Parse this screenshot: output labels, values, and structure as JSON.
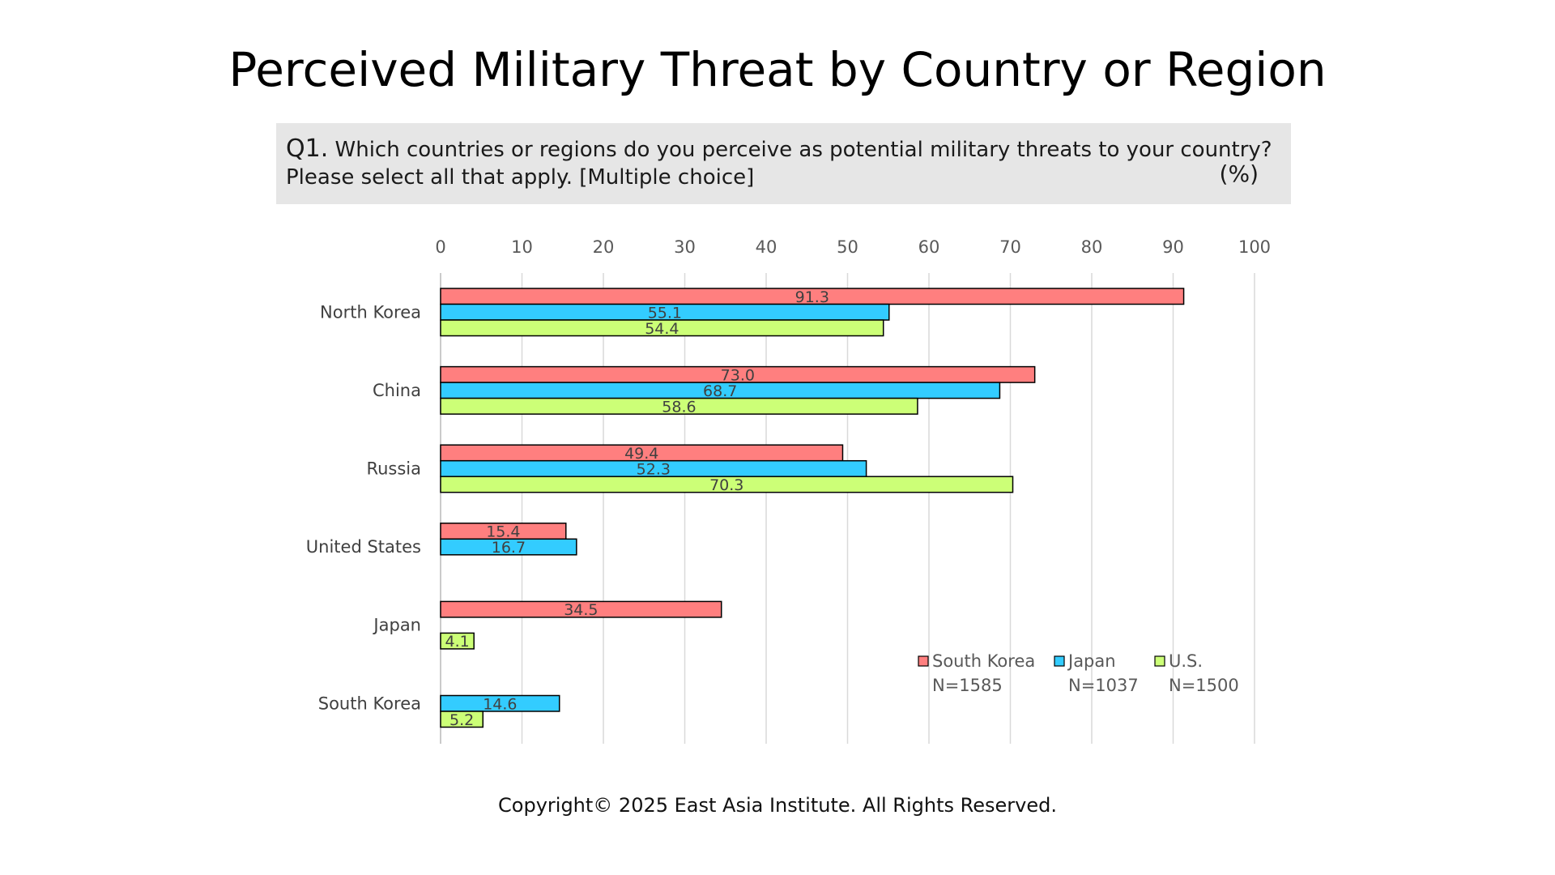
{
  "title": "Perceived Military Threat by Country or Region",
  "question": {
    "number": "Q1.",
    "line1": "Which countries or regions do you perceive as potential military threats to your country?",
    "line2": "Please select all that apply. [Multiple choice]",
    "unit": "(%)"
  },
  "copyright": "Copyright© 2025 East Asia Institute. All Rights Reserved.",
  "chart_data": {
    "type": "bar",
    "orientation": "horizontal",
    "categories": [
      "North Korea",
      "China",
      "Russia",
      "United States",
      "Japan",
      "South Korea"
    ],
    "series": [
      {
        "name": "South Korea",
        "n": "N=1585",
        "color": "#ff7f7f",
        "values": [
          91.3,
          73.0,
          49.4,
          15.4,
          34.5,
          null
        ],
        "labels": [
          "91.3",
          "73.0",
          "49.4",
          "15.4",
          "34.5",
          null
        ]
      },
      {
        "name": "Japan",
        "n": "N=1037",
        "color": "#33ccff",
        "values": [
          55.1,
          68.7,
          52.3,
          16.7,
          null,
          14.6
        ],
        "labels": [
          "55.1",
          "68.7",
          "52.3",
          "16.7",
          null,
          "14.6"
        ]
      },
      {
        "name": "U.S.",
        "n": "N=1500",
        "color": "#ccff77",
        "values": [
          54.4,
          58.6,
          70.3,
          null,
          4.1,
          5.2
        ],
        "labels": [
          "54.4",
          "58.6",
          "70.3",
          null,
          "4.1",
          "5.2"
        ]
      }
    ],
    "xlim": [
      0,
      100
    ],
    "xticks": [
      "0",
      "10",
      "20",
      "30",
      "40",
      "50",
      "60",
      "70",
      "80",
      "90",
      "100"
    ],
    "x_axis_position": "top",
    "grid": true,
    "legend_position": "bottom-right"
  }
}
